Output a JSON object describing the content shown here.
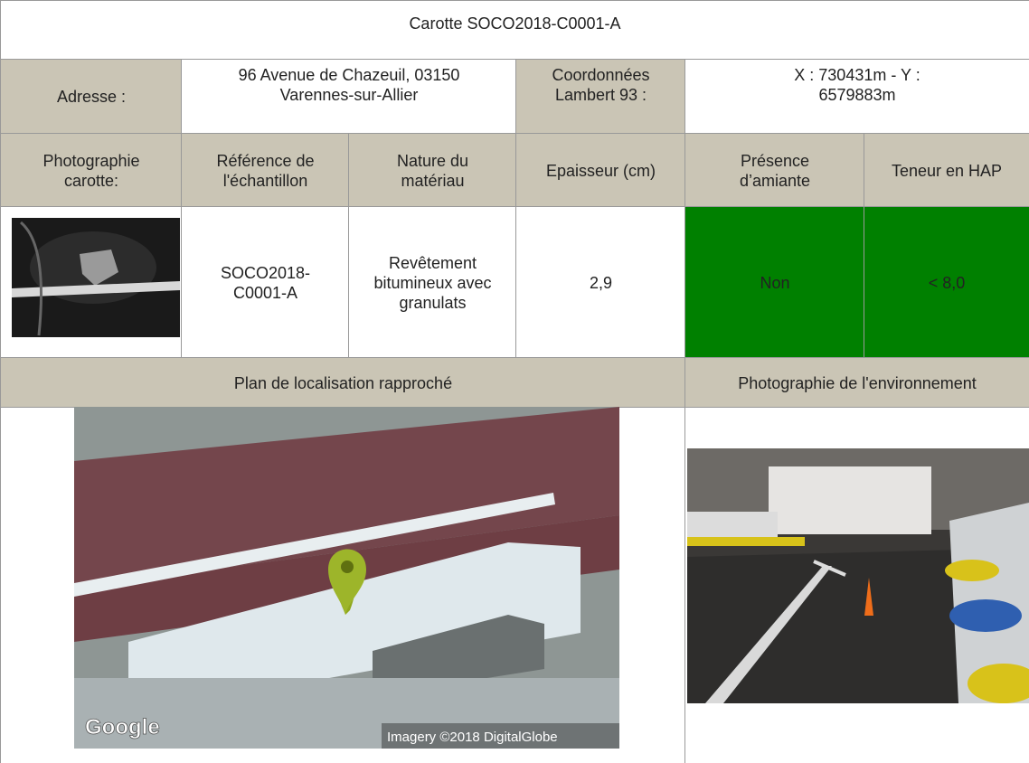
{
  "title": "Carotte SOCO2018-C0001-A",
  "address": {
    "label": "Adresse :",
    "value": "96 Avenue de Chazeuil, 03150 Varennes-sur-Allier",
    "coords_label": "Coordonnées Lambert 93 :",
    "coords_value": "X : 730431m - Y : 6579883m"
  },
  "table": {
    "headers": [
      "Photographie carotte:",
      "Référence de l'échantillon",
      "Nature du matériau",
      "Epaisseur (cm)",
      "Présence d’amiante",
      "Teneur en HAP"
    ],
    "row": [
      "SOCO2018-C0001-A",
      "Revêtement bitumineux avec granulats",
      "2,9",
      "Non",
      "< 8,0"
    ]
  },
  "sections": [
    "Plan de localisation rapproché",
    "Photographie de l'environnement"
  ],
  "map": {
    "logo": "Google",
    "credit": "Imagery ©2018 DigitalGlobe"
  }
}
